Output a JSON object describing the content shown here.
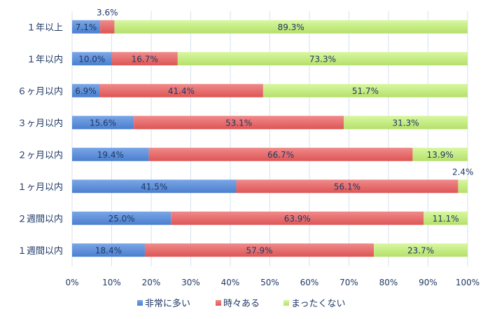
{
  "chart_data": {
    "type": "bar",
    "orientation": "horizontal",
    "stacked": "100%",
    "categories": [
      "１年以上",
      "１年以内",
      "６ヶ月以内",
      "３ヶ月以内",
      "２ヶ月以内",
      "１ヶ月以内",
      "２週間以内",
      "１週間以内"
    ],
    "series": [
      {
        "name": "非常に多い",
        "color": "#5b8fd9",
        "values": [
          7.1,
          10.0,
          6.9,
          15.6,
          19.4,
          41.5,
          25.0,
          18.4
        ]
      },
      {
        "name": "時々ある",
        "color": "#e86868",
        "values": [
          3.6,
          16.7,
          41.4,
          53.1,
          66.7,
          56.1,
          63.9,
          57.9
        ]
      },
      {
        "name": "まったくない",
        "color": "#c6ef84",
        "values": [
          89.3,
          73.3,
          51.7,
          31.3,
          13.9,
          2.4,
          11.1,
          23.7
        ]
      }
    ],
    "data_labels": [
      [
        "7.1%",
        "3.6%",
        "89.3%"
      ],
      [
        "10.0%",
        "16.7%",
        "73.3%"
      ],
      [
        "6.9%",
        "41.4%",
        "51.7%"
      ],
      [
        "15.6%",
        "53.1%",
        "31.3%"
      ],
      [
        "19.4%",
        "66.7%",
        "13.9%"
      ],
      [
        "41.5%",
        "56.1%",
        "2.4%"
      ],
      [
        "25.0%",
        "63.9%",
        "11.1%"
      ],
      [
        "18.4%",
        "57.9%",
        "23.7%"
      ]
    ],
    "xlim": [
      0,
      100
    ],
    "x_ticks": [
      "0%",
      "10%",
      "20%",
      "30%",
      "40%",
      "50%",
      "60%",
      "70%",
      "80%",
      "90%",
      "100%"
    ],
    "grid": "vertical",
    "legend": "bottom"
  }
}
